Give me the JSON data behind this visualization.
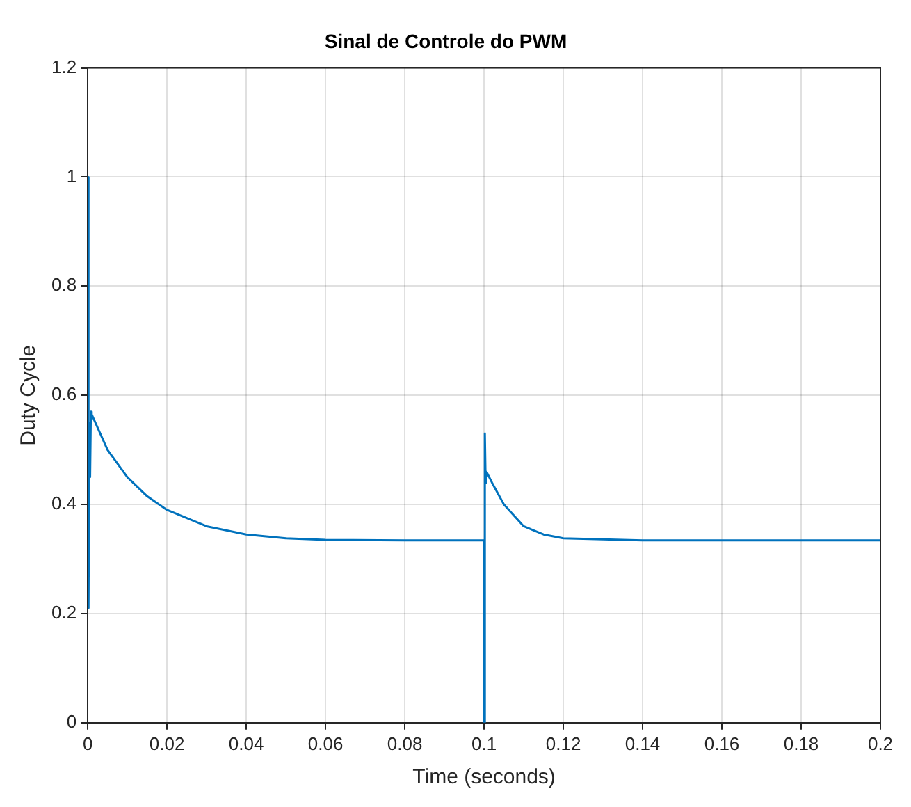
{
  "chart_data": {
    "type": "line",
    "title": "Sinal de Controle do PWM",
    "xlabel": "Time (seconds)",
    "ylabel": "Duty Cycle",
    "x": [
      0,
      0.0002,
      0.0004,
      0.0006,
      0.0008,
      0.001,
      0.005,
      0.01,
      0.015,
      0.02,
      0.025,
      0.03,
      0.04,
      0.05,
      0.06,
      0.08,
      0.0999,
      0.1,
      0.1002,
      0.1004,
      0.1006,
      0.102,
      0.105,
      0.11,
      0.115,
      0.12,
      0.14,
      0.2
    ],
    "series": [
      {
        "color": "#0072bd",
        "values": [
          1.0,
          0.21,
          0.55,
          0.45,
          0.57,
          0.565,
          0.5,
          0.45,
          0.415,
          0.39,
          0.375,
          0.36,
          0.345,
          0.338,
          0.335,
          0.334,
          0.334,
          0,
          0.53,
          0.44,
          0.46,
          0.44,
          0.4,
          0.36,
          0.345,
          0.338,
          0.334,
          0.334
        ]
      }
    ],
    "xlim": [
      0,
      0.2
    ],
    "xticks": [
      0,
      0.02,
      0.04,
      0.06,
      0.08,
      0.1,
      0.12,
      0.14,
      0.16,
      0.18,
      0.2
    ],
    "ylim": [
      0,
      1.2
    ],
    "yticks": [
      0,
      0.2,
      0.4,
      0.6,
      0.8,
      1,
      1.2
    ],
    "grid": true,
    "legend": false,
    "marker": "none",
    "line_style": "solid"
  }
}
